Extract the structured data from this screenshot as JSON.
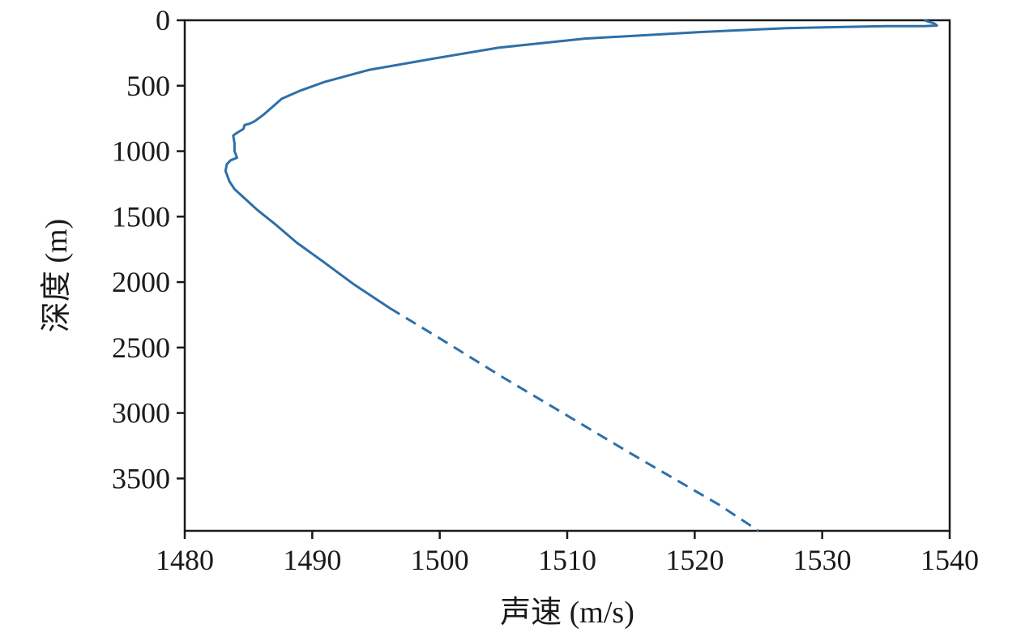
{
  "chart_data": {
    "type": "line",
    "title": "",
    "xlabel": "声速 (m/s)",
    "ylabel": "深度 (m)",
    "xlim": [
      1480,
      1540
    ],
    "ylim": [
      0,
      3900
    ],
    "y_inverted": true,
    "grid": false,
    "xticks": [
      1480,
      1490,
      1500,
      1510,
      1520,
      1530,
      1540
    ],
    "yticks": [
      0,
      500,
      1000,
      1500,
      2000,
      2500,
      3000,
      3500
    ],
    "line_color": "#2e6fa8",
    "series": [
      {
        "style": "solid",
        "points": [
          [
            1538,
            0
          ],
          [
            1538.8,
            25
          ],
          [
            1539,
            40
          ],
          [
            1538,
            45
          ],
          [
            1535,
            45
          ],
          [
            1527.2,
            60
          ],
          [
            1520.5,
            90
          ],
          [
            1511.4,
            140
          ],
          [
            1504.6,
            210
          ],
          [
            1499.7,
            290
          ],
          [
            1494.4,
            380
          ],
          [
            1491,
            470
          ],
          [
            1489,
            540
          ],
          [
            1487.6,
            600
          ],
          [
            1486.9,
            660
          ],
          [
            1486.2,
            720
          ],
          [
            1485.5,
            770
          ],
          [
            1485.1,
            790
          ],
          [
            1484.7,
            800
          ],
          [
            1484.6,
            830
          ],
          [
            1484.1,
            860
          ],
          [
            1483.8,
            880
          ],
          [
            1483.9,
            940
          ],
          [
            1483.9,
            1000
          ],
          [
            1484.1,
            1050
          ],
          [
            1483.6,
            1070
          ],
          [
            1483.3,
            1100
          ],
          [
            1483.2,
            1150
          ],
          [
            1483.5,
            1230
          ],
          [
            1483.9,
            1290
          ],
          [
            1484.7,
            1360
          ],
          [
            1485.7,
            1450
          ],
          [
            1487,
            1550
          ],
          [
            1488.8,
            1700
          ],
          [
            1490.8,
            1840
          ],
          [
            1493.3,
            2020
          ],
          [
            1496.1,
            2200
          ]
        ]
      },
      {
        "style": "dashed",
        "points": [
          [
            1496.1,
            2200
          ],
          [
            1500,
            2430
          ],
          [
            1505,
            2730
          ],
          [
            1510,
            3020
          ],
          [
            1515,
            3310
          ],
          [
            1519.6,
            3570
          ],
          [
            1521.9,
            3700
          ],
          [
            1525,
            3900
          ]
        ]
      }
    ]
  }
}
